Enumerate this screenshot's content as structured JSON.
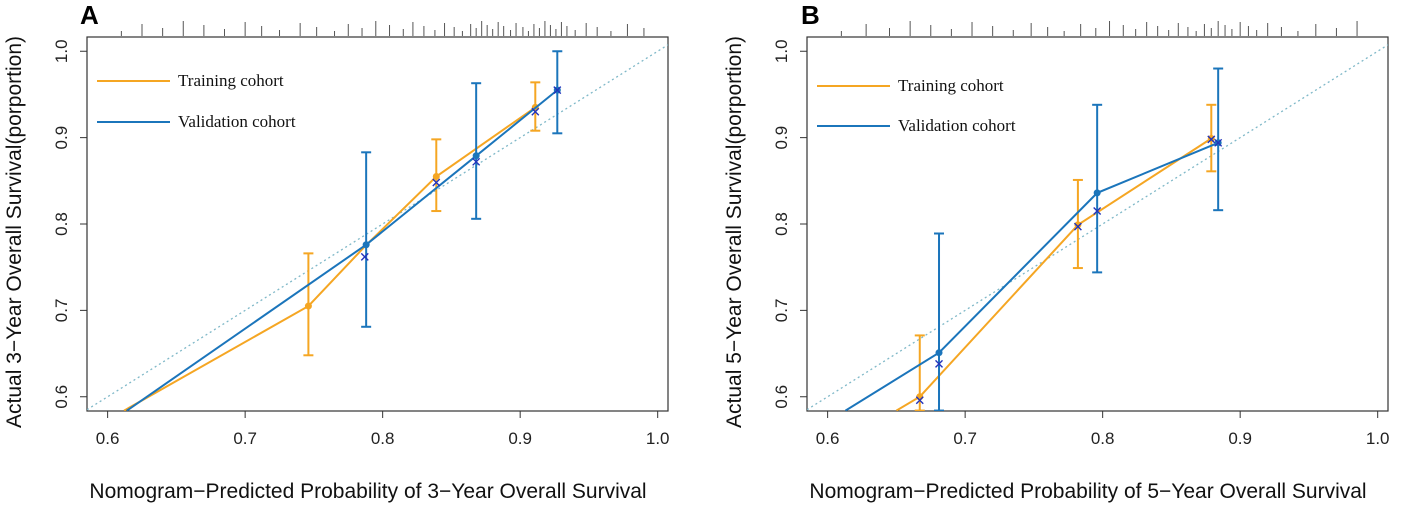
{
  "colors": {
    "training": "#F5A623",
    "validation": "#1B75BB",
    "ideal": "#7FB8C8",
    "apparent": "#2233BB",
    "axis": "#333333"
  },
  "legend": {
    "training_label": "Training cohort",
    "validation_label": "Validation cohort"
  },
  "chart_data": [
    {
      "type": "line",
      "panel_label": "A",
      "xlabel": "Nomogram−Predicted Probability of 3−Year Overall Survival",
      "ylabel": "Actual 3−Year Overall Survival(porportion)",
      "xlim": [
        0.585,
        1.0075
      ],
      "ylim": [
        0.5835,
        1.0165
      ],
      "xticks": [
        "0.6",
        "0.7",
        "0.8",
        "0.9",
        "1.0"
      ],
      "yticks": [
        "0.6",
        "0.7",
        "0.8",
        "0.9",
        "1.0"
      ],
      "legend_position": "top-left",
      "series": [
        {
          "name": "Training cohort",
          "x": [
            0.612,
            0.746,
            0.787,
            0.839,
            0.911
          ],
          "y": [
            0.584,
            0.705,
            0.774,
            0.855,
            0.935
          ],
          "lower": [
            null,
            0.648,
            null,
            0.815,
            0.908
          ],
          "upper": [
            null,
            0.766,
            null,
            0.898,
            0.964
          ]
        },
        {
          "name": "Validation cohort",
          "x": [
            0.614,
            0.788,
            0.868,
            0.927
          ],
          "y": [
            0.584,
            0.776,
            0.879,
            0.955
          ],
          "lower": [
            null,
            0.681,
            0.806,
            0.905
          ],
          "upper": [
            null,
            0.883,
            0.963,
            1.0
          ]
        }
      ],
      "apparent_points": {
        "x": [
          0.787,
          0.839,
          0.868,
          0.911,
          0.927
        ],
        "y": [
          0.762,
          0.848,
          0.872,
          0.93,
          0.955
        ]
      },
      "rug_x": [
        0.61,
        0.625,
        0.64,
        0.655,
        0.67,
        0.685,
        0.7,
        0.712,
        0.725,
        0.74,
        0.752,
        0.765,
        0.775,
        0.785,
        0.795,
        0.805,
        0.815,
        0.822,
        0.83,
        0.838,
        0.845,
        0.852,
        0.858,
        0.864,
        0.868,
        0.872,
        0.876,
        0.88,
        0.884,
        0.888,
        0.893,
        0.897,
        0.902,
        0.906,
        0.91,
        0.914,
        0.918,
        0.922,
        0.926,
        0.93,
        0.934,
        0.94,
        0.948,
        0.956,
        0.966,
        0.978,
        0.99
      ]
    },
    {
      "type": "line",
      "panel_label": "B",
      "xlabel": "Nomogram−Predicted Probability of 5−Year Overall Survival",
      "ylabel": "Actual 5−Year Overall Survival(porportion)",
      "xlim": [
        0.585,
        1.0075
      ],
      "ylim": [
        0.5835,
        1.0165
      ],
      "xticks": [
        "0.6",
        "0.7",
        "0.8",
        "0.9",
        "1.0"
      ],
      "yticks": [
        "0.6",
        "0.7",
        "0.8",
        "0.9",
        "1.0"
      ],
      "legend_position": "top-left",
      "series": [
        {
          "name": "Training cohort",
          "x": [
            0.65,
            0.667,
            0.782,
            0.879
          ],
          "y": [
            0.584,
            0.6,
            0.799,
            0.899
          ],
          "lower": [
            null,
            0.584,
            0.749,
            0.861
          ],
          "upper": [
            null,
            0.671,
            0.851,
            0.938
          ]
        },
        {
          "name": "Validation cohort",
          "x": [
            0.613,
            0.681,
            0.796,
            0.884
          ],
          "y": [
            0.584,
            0.651,
            0.836,
            0.894
          ],
          "lower": [
            null,
            0.584,
            0.744,
            0.816
          ],
          "upper": [
            null,
            0.789,
            0.938,
            0.98
          ]
        }
      ],
      "apparent_points": {
        "x": [
          0.667,
          0.681,
          0.782,
          0.796,
          0.879,
          0.884
        ],
        "y": [
          0.596,
          0.638,
          0.797,
          0.815,
          0.898,
          0.894
        ]
      },
      "rug_x": [
        0.61,
        0.628,
        0.645,
        0.66,
        0.675,
        0.69,
        0.705,
        0.72,
        0.735,
        0.748,
        0.76,
        0.772,
        0.784,
        0.795,
        0.805,
        0.815,
        0.824,
        0.832,
        0.84,
        0.848,
        0.855,
        0.862,
        0.868,
        0.874,
        0.879,
        0.884,
        0.889,
        0.894,
        0.9,
        0.906,
        0.912,
        0.92,
        0.93,
        0.942,
        0.955,
        0.97,
        0.985
      ]
    }
  ]
}
